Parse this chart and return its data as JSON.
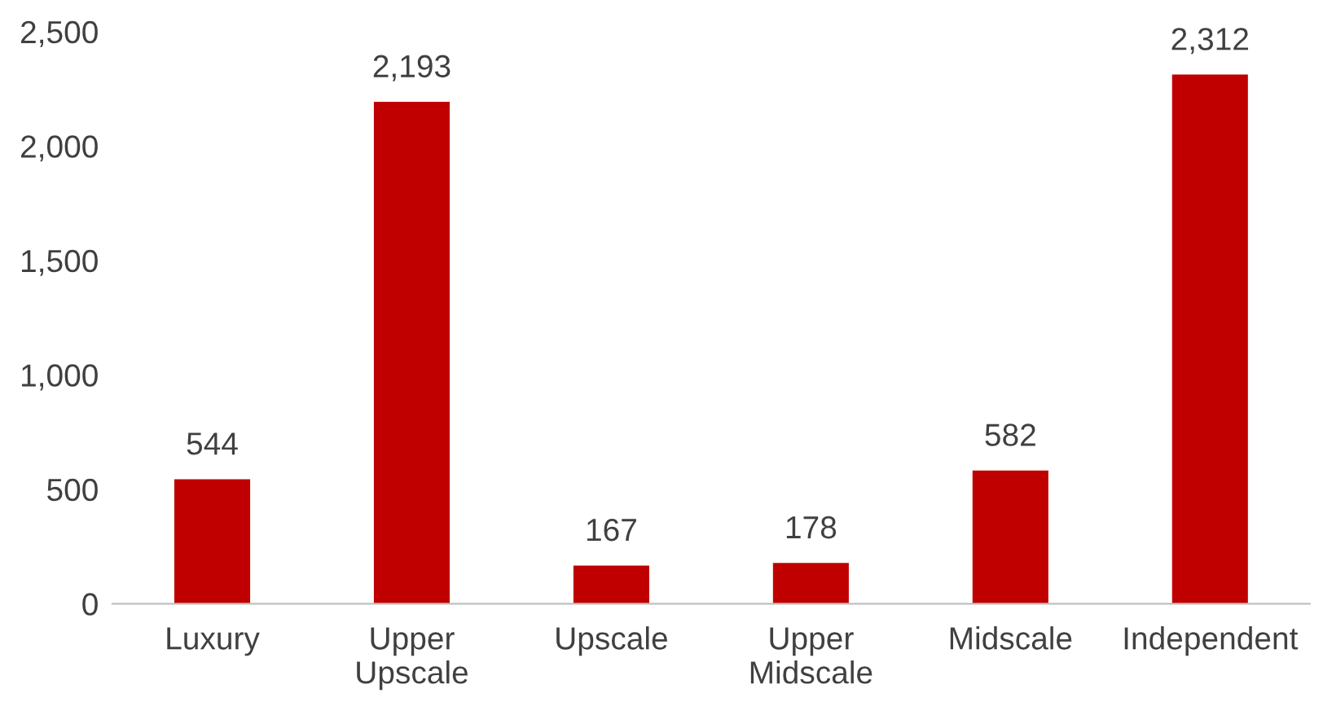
{
  "chart_data": {
    "type": "bar",
    "categories": [
      "Luxury",
      "Upper\nUpscale",
      "Upscale",
      "Upper\nMidscale",
      "Midscale",
      "Independent"
    ],
    "values": [
      544,
      2193,
      167,
      178,
      582,
      2312
    ],
    "value_labels": [
      "544",
      "2,193",
      "167",
      "178",
      "582",
      "2,312"
    ],
    "color": "#c00000",
    "ylim": [
      0,
      2500
    ],
    "yticks": [
      0,
      500,
      {
        "value": 1000,
        "label": "1,000"
      },
      {
        "value": 1500,
        "label": "1,500"
      },
      {
        "value": 2000,
        "label": "2,000"
      },
      {
        "value": 2500,
        "label": "2,500"
      }
    ],
    "grid": false,
    "legend": false
  }
}
